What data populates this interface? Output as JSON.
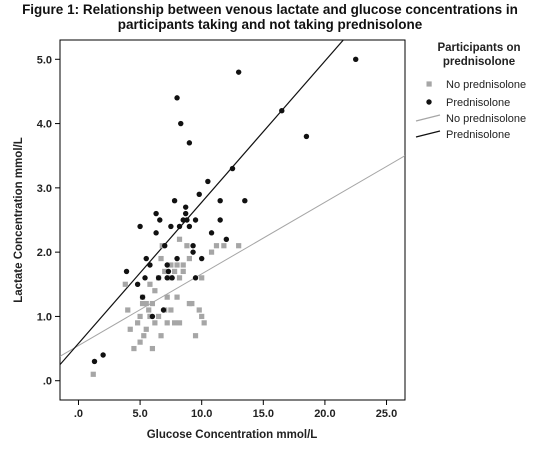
{
  "chart_data": {
    "type": "scatter",
    "title_lines": [
      "Figure 1: Relationship between venous lactate and glucose concentrations in",
      "participants taking and not taking prednisolone"
    ],
    "xlabel": "Glucose Concentration mmol/L",
    "ylabel": "Lactate Concentration mmol/L",
    "xlim": [
      -1.5,
      26.5
    ],
    "ylim": [
      -0.3,
      5.3
    ],
    "x_ticks": [
      0,
      5,
      10,
      15,
      20,
      25
    ],
    "x_tick_labels": [
      ".0",
      "5.0",
      "10.0",
      "15.0",
      "20.0",
      "25.0"
    ],
    "y_ticks": [
      0,
      1,
      2,
      3,
      4,
      5
    ],
    "y_tick_labels": [
      ".0",
      "1.0",
      "2.0",
      "3.0",
      "4.0",
      "5.0"
    ],
    "grid": false,
    "legend": {
      "title_lines": [
        "Participants on",
        "prednisolone"
      ],
      "placement": "right",
      "entries": [
        {
          "label": "No prednisolone",
          "kind": "marker",
          "series": 0
        },
        {
          "label": "Prednisolone",
          "kind": "marker",
          "series": 1
        },
        {
          "label": "No prednisolone",
          "kind": "line",
          "series": 0
        },
        {
          "label": "Prednisolone",
          "kind": "line",
          "series": 1
        }
      ]
    },
    "series": [
      {
        "name": "No prednisolone",
        "marker": "square",
        "color": "#a6a6a6",
        "fit_line": {
          "x": [
            -1.5,
            26.5
          ],
          "y": [
            0.38,
            3.5
          ]
        },
        "points": [
          [
            1.2,
            0.1
          ],
          [
            3.8,
            1.5
          ],
          [
            4.0,
            1.1
          ],
          [
            4.2,
            0.8
          ],
          [
            4.5,
            0.5
          ],
          [
            4.8,
            0.9
          ],
          [
            5.0,
            1.0
          ],
          [
            5.0,
            0.6
          ],
          [
            5.2,
            1.3
          ],
          [
            5.2,
            1.2
          ],
          [
            5.3,
            0.7
          ],
          [
            5.5,
            1.2
          ],
          [
            5.5,
            0.8
          ],
          [
            5.7,
            1.1
          ],
          [
            5.8,
            1.0
          ],
          [
            5.8,
            1.5
          ],
          [
            6.0,
            1.2
          ],
          [
            6.0,
            0.5
          ],
          [
            6.2,
            0.9
          ],
          [
            6.2,
            1.4
          ],
          [
            6.5,
            1.6
          ],
          [
            6.5,
            1.0
          ],
          [
            6.7,
            0.7
          ],
          [
            6.7,
            1.9
          ],
          [
            6.8,
            2.1
          ],
          [
            7.0,
            1.7
          ],
          [
            7.0,
            1.1
          ],
          [
            7.2,
            0.9
          ],
          [
            7.2,
            1.3
          ],
          [
            7.5,
            1.8
          ],
          [
            7.5,
            1.6
          ],
          [
            7.5,
            1.1
          ],
          [
            7.8,
            1.7
          ],
          [
            7.8,
            0.9
          ],
          [
            8.0,
            1.8
          ],
          [
            8.0,
            1.3
          ],
          [
            8.2,
            2.2
          ],
          [
            8.2,
            1.6
          ],
          [
            8.2,
            0.9
          ],
          [
            8.5,
            1.7
          ],
          [
            8.5,
            1.8
          ],
          [
            8.8,
            2.1
          ],
          [
            9.0,
            1.9
          ],
          [
            9.0,
            1.2
          ],
          [
            9.2,
            1.2
          ],
          [
            9.5,
            0.7
          ],
          [
            9.8,
            1.1
          ],
          [
            10.0,
            1.6
          ],
          [
            10.0,
            1.0
          ],
          [
            10.2,
            0.9
          ],
          [
            10.8,
            2.0
          ],
          [
            11.2,
            2.1
          ],
          [
            11.8,
            2.1
          ],
          [
            13.0,
            2.1
          ]
        ]
      },
      {
        "name": "Prednisolone",
        "marker": "circle",
        "color": "#111111",
        "fit_line": {
          "x": [
            -1.5,
            26.5
          ],
          "y": [
            0.25,
            6.4
          ]
        },
        "points": [
          [
            1.3,
            0.3
          ],
          [
            2.0,
            0.4
          ],
          [
            3.9,
            1.7
          ],
          [
            4.8,
            1.5
          ],
          [
            5.0,
            2.4
          ],
          [
            5.2,
            1.3
          ],
          [
            5.4,
            1.6
          ],
          [
            5.5,
            1.9
          ],
          [
            5.8,
            1.8
          ],
          [
            6.0,
            1.0
          ],
          [
            6.3,
            2.6
          ],
          [
            6.3,
            2.3
          ],
          [
            6.5,
            1.6
          ],
          [
            6.6,
            2.5
          ],
          [
            6.9,
            1.1
          ],
          [
            7.0,
            2.1
          ],
          [
            7.2,
            1.8
          ],
          [
            7.2,
            1.6
          ],
          [
            7.3,
            1.7
          ],
          [
            7.5,
            2.4
          ],
          [
            7.6,
            1.6
          ],
          [
            7.8,
            2.8
          ],
          [
            8.0,
            4.4
          ],
          [
            8.0,
            1.9
          ],
          [
            8.2,
            2.4
          ],
          [
            8.3,
            4.0
          ],
          [
            8.5,
            2.5
          ],
          [
            8.7,
            2.6
          ],
          [
            8.7,
            2.7
          ],
          [
            8.8,
            2.5
          ],
          [
            9.0,
            3.7
          ],
          [
            9.0,
            2.4
          ],
          [
            9.3,
            2.1
          ],
          [
            9.3,
            2.0
          ],
          [
            9.5,
            1.6
          ],
          [
            9.5,
            2.5
          ],
          [
            9.8,
            2.9
          ],
          [
            10.0,
            1.9
          ],
          [
            10.5,
            3.1
          ],
          [
            10.8,
            2.3
          ],
          [
            11.5,
            2.5
          ],
          [
            11.5,
            2.8
          ],
          [
            12.0,
            2.2
          ],
          [
            12.5,
            3.3
          ],
          [
            13.0,
            4.8
          ],
          [
            13.5,
            2.8
          ],
          [
            16.5,
            4.2
          ],
          [
            18.5,
            3.8
          ],
          [
            22.5,
            5.0
          ]
        ]
      }
    ]
  }
}
